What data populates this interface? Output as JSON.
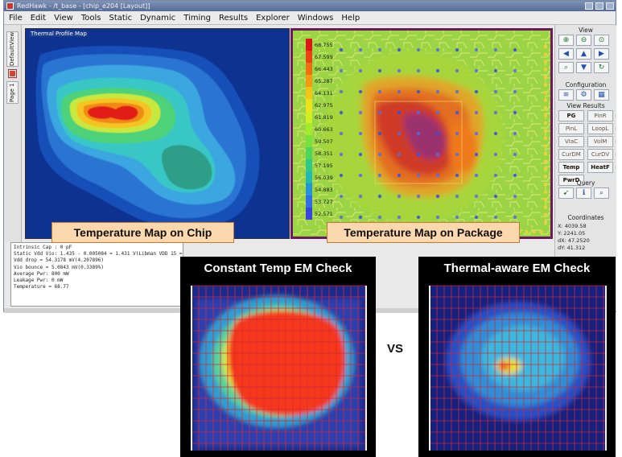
{
  "window": {
    "title": "RedHawk - /t_base - [chip_e204 [Layout]]"
  },
  "menubar": {
    "items": [
      "File",
      "Edit",
      "View",
      "Tools",
      "Static",
      "Dynamic",
      "Timing",
      "Results",
      "Explorer",
      "Windows",
      "Help"
    ]
  },
  "left_tabs": {
    "tab1": "DefaultView",
    "tab2": "Page 1"
  },
  "chip_map": {
    "label": "Thermal Profile Map",
    "caption": "Temperature Map on Chip"
  },
  "package_map": {
    "caption": "Temperature Map on Package",
    "legend_values": [
      "68.755",
      "67.599",
      "66.443",
      "65.287",
      "64.131",
      "62.975",
      "61.819",
      "60.663",
      "59.507",
      "58.351",
      "57.195",
      "56.039",
      "54.883",
      "53.727",
      "52.571"
    ],
    "legend_colors": [
      "#e01616",
      "#ea4212",
      "#f06e10",
      "#f39a12",
      "#f2c414",
      "#eee21c",
      "#d2ef24",
      "#a6ea2c",
      "#78e23a",
      "#4cd65a",
      "#2ec986",
      "#22b9b2",
      "#2594d8",
      "#2f6ee6",
      "#3a44e0"
    ]
  },
  "toolbox": {
    "view_title": "View",
    "configuration_title": "Configuration",
    "view_results_title": "View Results",
    "view_results_buttons": [
      {
        "label": "PG",
        "on": true
      },
      {
        "label": "PinR",
        "on": false
      },
      {
        "label": "PinL",
        "on": false
      },
      {
        "label": "LoopL",
        "on": false
      },
      {
        "label": "VIaC",
        "on": false
      },
      {
        "label": "VolM",
        "on": false
      },
      {
        "label": "CurDM",
        "on": false
      },
      {
        "label": "CurDV",
        "on": false
      },
      {
        "label": "Temp",
        "on": true
      },
      {
        "label": "HeatF",
        "on": true
      },
      {
        "label": "PwrD",
        "on": true
      }
    ],
    "query_title": "Query",
    "coordinates_title": "Coordinates",
    "coordinates": [
      {
        "key": "X:",
        "value": "4039.58"
      },
      {
        "key": "Y:",
        "value": "2241.05"
      },
      {
        "key": "dX:",
        "value": "47.2520"
      },
      {
        "key": "dY:",
        "value": "41.312"
      }
    ]
  },
  "log": {
    "lines": [
      "Intrinsic Cap :        0 pF",
      "Static Vdd Vio:   1.435 - 0.005084 =  1.431 V(Libman VDD 15 = 1.5000 V)",
      "Vdd drop = 54.3178 mV(4.207896)",
      "Vio bounce = 5.0843 mV(0.3389%)",
      "Average Pwr:       800 mW",
      "Leakage Pwr:         0 mW",
      "Temperature = 68.77"
    ]
  },
  "em_const": {
    "title": "Constant Temp EM Check"
  },
  "em_therm": {
    "title": "Thermal-aware EM Check"
  },
  "comparison": {
    "vs": "VS"
  }
}
